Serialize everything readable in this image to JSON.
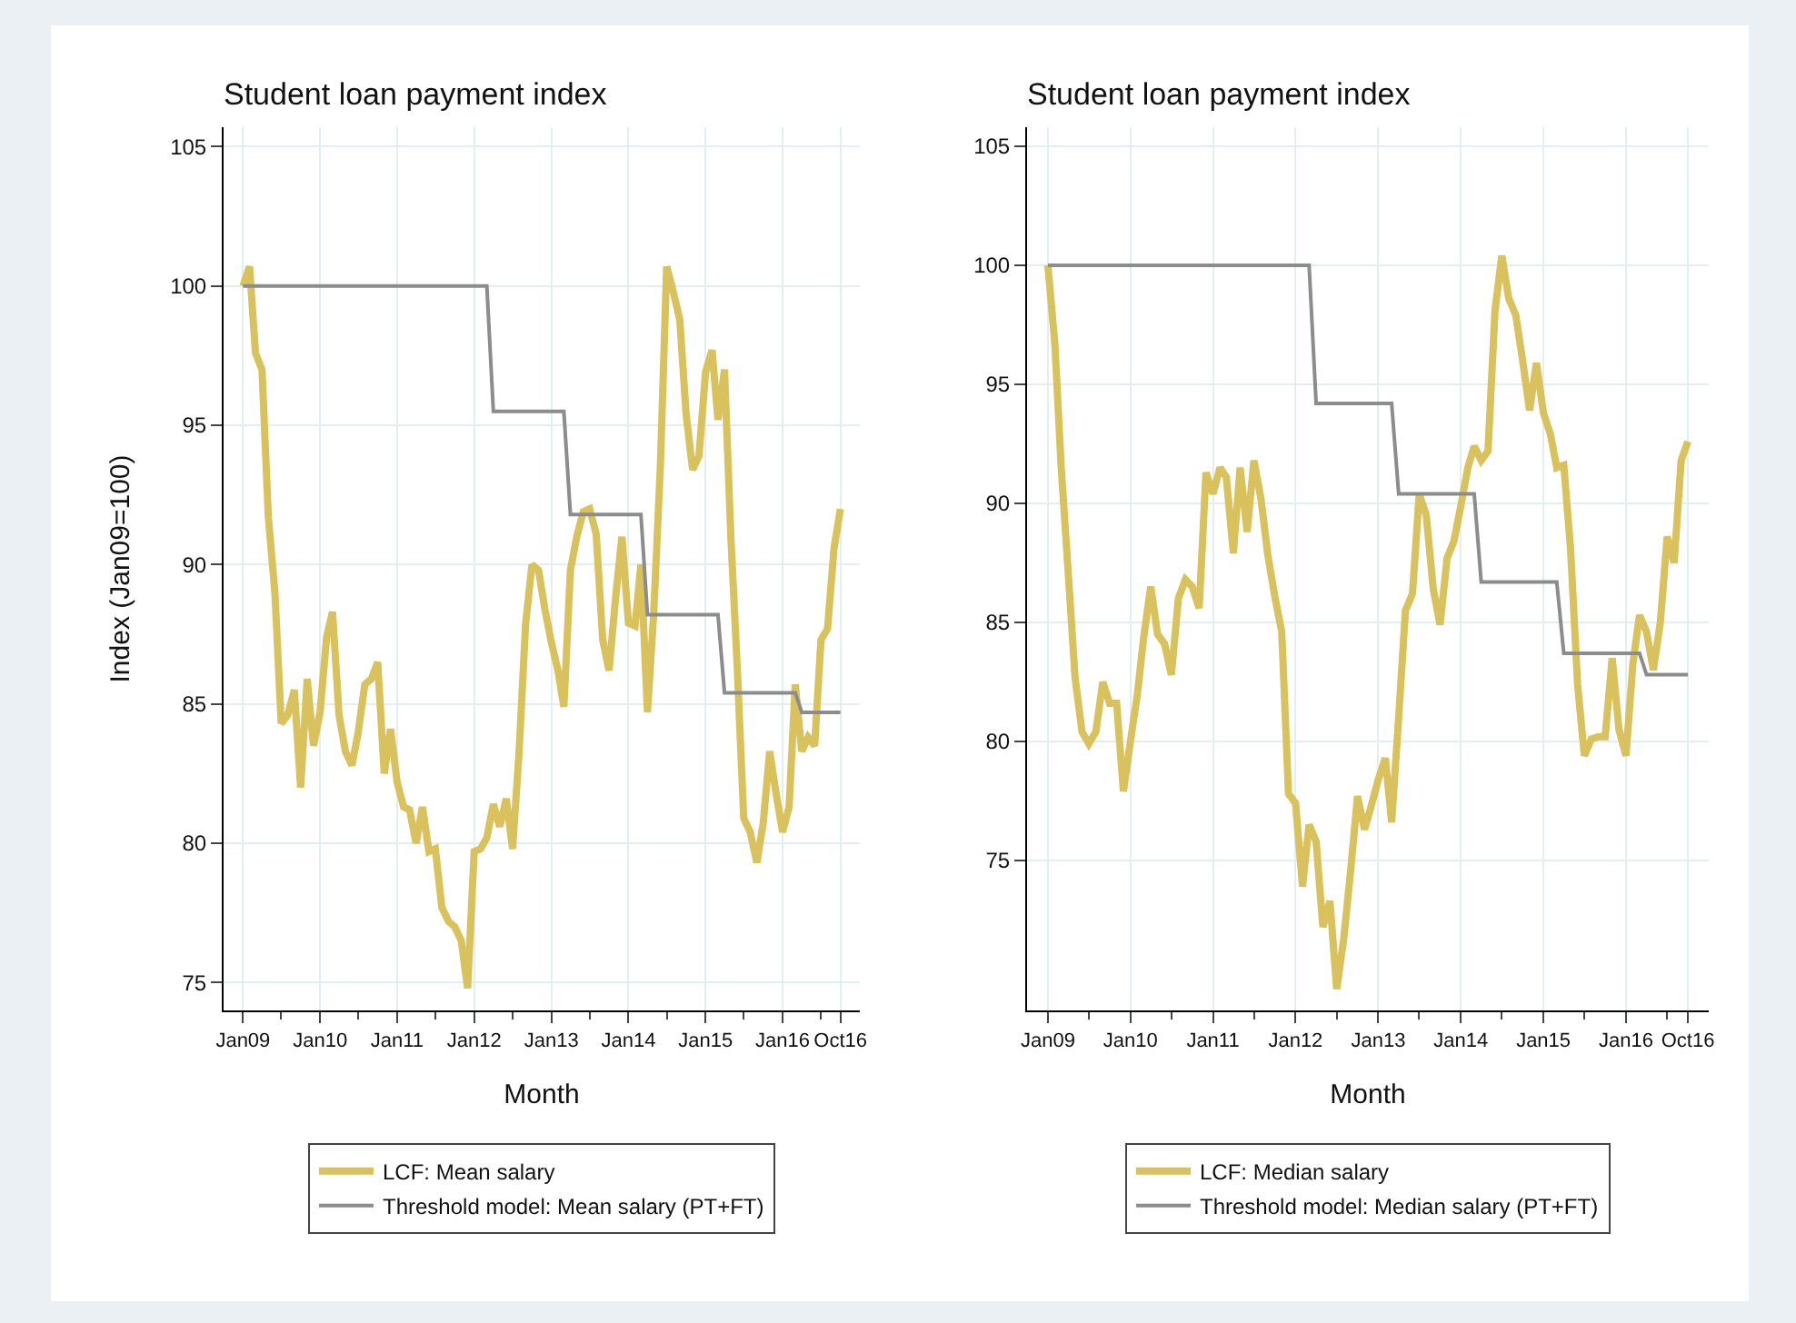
{
  "chart_data": [
    {
      "type": "line",
      "title": "Student loan payment index",
      "xlabel": "Month",
      "ylabel": "Index (Jan09=100)",
      "x": [
        "2009-01",
        "2009-02",
        "2009-03",
        "2009-04",
        "2009-05",
        "2009-06",
        "2009-07",
        "2009-08",
        "2009-09",
        "2009-10",
        "2009-11",
        "2009-12",
        "2010-01",
        "2010-02",
        "2010-03",
        "2010-04",
        "2010-05",
        "2010-06",
        "2010-07",
        "2010-08",
        "2010-09",
        "2010-10",
        "2010-11",
        "2010-12",
        "2011-01",
        "2011-02",
        "2011-03",
        "2011-04",
        "2011-05",
        "2011-06",
        "2011-07",
        "2011-08",
        "2011-09",
        "2011-10",
        "2011-11",
        "2011-12",
        "2012-01",
        "2012-02",
        "2012-03",
        "2012-04",
        "2012-05",
        "2012-06",
        "2012-07",
        "2012-08",
        "2012-09",
        "2012-10",
        "2012-11",
        "2012-12",
        "2013-01",
        "2013-02",
        "2013-03",
        "2013-04",
        "2013-05",
        "2013-06",
        "2013-07",
        "2013-08",
        "2013-09",
        "2013-10",
        "2013-11",
        "2013-12",
        "2014-01",
        "2014-02",
        "2014-03",
        "2014-04",
        "2014-05",
        "2014-06",
        "2014-07",
        "2014-08",
        "2014-09",
        "2014-10",
        "2014-11",
        "2014-12",
        "2015-01",
        "2015-02",
        "2015-03",
        "2015-04",
        "2015-05",
        "2015-06",
        "2015-07",
        "2015-08",
        "2015-09",
        "2015-10",
        "2015-11",
        "2015-12",
        "2016-01",
        "2016-02",
        "2016-03",
        "2016-04",
        "2016-05",
        "2016-06",
        "2016-07",
        "2016-08",
        "2016-09",
        "2016-10"
      ],
      "series": [
        {
          "name": "LCF: Mean salary",
          "color": "#d9c25e",
          "values": [
            100,
            100.7,
            97.6,
            97.0,
            91.7,
            89.0,
            84.3,
            84.6,
            85.5,
            82.0,
            85.9,
            83.5,
            84.7,
            87.4,
            88.3,
            84.6,
            83.3,
            82.8,
            84.0,
            85.7,
            85.9,
            86.5,
            82.5,
            84.1,
            82.2,
            81.3,
            81.2,
            80.0,
            81.3,
            79.7,
            79.8,
            77.7,
            77.2,
            77.0,
            76.5,
            74.8,
            79.7,
            79.8,
            80.2,
            81.4,
            80.6,
            81.6,
            79.8,
            83.3,
            87.9,
            90.0,
            89.8,
            88.4,
            87.2,
            86.2,
            84.9,
            89.8,
            91.0,
            91.9,
            92.0,
            91.1,
            87.3,
            86.2,
            88.8,
            91.0,
            87.9,
            87.8,
            90.0,
            84.7,
            88.3,
            93.5,
            100.7,
            99.8,
            98.8,
            95.4,
            93.4,
            93.9,
            96.9,
            97.7,
            95.2,
            97.0,
            91.0,
            86.2,
            80.9,
            80.4,
            79.3,
            80.7,
            83.3,
            81.8,
            80.4,
            81.3,
            85.7,
            83.3,
            83.8,
            83.5,
            87.3,
            87.7,
            90.6,
            92.0
          ]
        },
        {
          "name": "Threshold model: Mean salary (PT+FT)",
          "color": "#8c8c8c",
          "x": [
            "2009-01",
            "2012-03",
            "2012-04",
            "2013-03",
            "2013-04",
            "2014-03",
            "2014-04",
            "2015-03",
            "2015-04",
            "2016-03",
            "2016-04",
            "2016-10"
          ],
          "values": [
            100,
            100,
            95.5,
            95.5,
            91.8,
            91.8,
            88.2,
            88.2,
            85.4,
            85.4,
            84.7,
            84.7
          ]
        }
      ],
      "xlim": [
        "2008-10",
        "2017-01"
      ],
      "xticks": [
        {
          "value": "2009-01",
          "label": "Jan09"
        },
        {
          "value": "2009-07",
          "label": null
        },
        {
          "value": "2010-01",
          "label": "Jan10"
        },
        {
          "value": "2010-07",
          "label": null
        },
        {
          "value": "2011-01",
          "label": "Jan11"
        },
        {
          "value": "2011-07",
          "label": null
        },
        {
          "value": "2012-01",
          "label": "Jan12"
        },
        {
          "value": "2012-07",
          "label": null
        },
        {
          "value": "2013-01",
          "label": "Jan13"
        },
        {
          "value": "2013-07",
          "label": null
        },
        {
          "value": "2014-01",
          "label": "Jan14"
        },
        {
          "value": "2014-07",
          "label": null
        },
        {
          "value": "2015-01",
          "label": "Jan15"
        },
        {
          "value": "2015-07",
          "label": null
        },
        {
          "value": "2016-01",
          "label": "Jan16"
        },
        {
          "value": "2016-07",
          "label": null
        },
        {
          "value": "2016-10",
          "label": "Oct16"
        }
      ],
      "ylim": [
        74,
        105.7
      ],
      "yticks": [
        75,
        80,
        85,
        90,
        95,
        100,
        105
      ],
      "grid": true,
      "legend": "bottom",
      "marker": "none",
      "line_style": "solid"
    },
    {
      "type": "line",
      "title": "Student loan payment index",
      "xlabel": "Month",
      "x": [
        "2009-01",
        "2009-02",
        "2009-03",
        "2009-04",
        "2009-05",
        "2009-06",
        "2009-07",
        "2009-08",
        "2009-09",
        "2009-10",
        "2009-11",
        "2009-12",
        "2010-01",
        "2010-02",
        "2010-03",
        "2010-04",
        "2010-05",
        "2010-06",
        "2010-07",
        "2010-08",
        "2010-09",
        "2010-10",
        "2010-11",
        "2010-12",
        "2011-01",
        "2011-02",
        "2011-03",
        "2011-04",
        "2011-05",
        "2011-06",
        "2011-07",
        "2011-08",
        "2011-09",
        "2011-10",
        "2011-11",
        "2011-12",
        "2012-01",
        "2012-02",
        "2012-03",
        "2012-04",
        "2012-05",
        "2012-06",
        "2012-07",
        "2012-08",
        "2012-09",
        "2012-10",
        "2012-11",
        "2012-12",
        "2013-01",
        "2013-02",
        "2013-03",
        "2013-04",
        "2013-05",
        "2013-06",
        "2013-07",
        "2013-08",
        "2013-09",
        "2013-10",
        "2013-11",
        "2013-12",
        "2014-01",
        "2014-02",
        "2014-03",
        "2014-04",
        "2014-05",
        "2014-06",
        "2014-07",
        "2014-08",
        "2014-09",
        "2014-10",
        "2014-11",
        "2014-12",
        "2015-01",
        "2015-02",
        "2015-03",
        "2015-04",
        "2015-05",
        "2015-06",
        "2015-07",
        "2015-08",
        "2015-09",
        "2015-10",
        "2015-11",
        "2015-12",
        "2016-01",
        "2016-02",
        "2016-03",
        "2016-04",
        "2016-05",
        "2016-06",
        "2016-07",
        "2016-08",
        "2016-09",
        "2016-10"
      ],
      "series": [
        {
          "name": "LCF: Median salary",
          "color": "#d9c25e",
          "values": [
            100,
            96.7,
            91.5,
            87.1,
            82.7,
            80.4,
            79.9,
            80.4,
            82.5,
            81.6,
            81.6,
            77.9,
            80.0,
            82.0,
            84.4,
            86.5,
            84.5,
            84.1,
            82.8,
            86.0,
            86.8,
            86.5,
            85.6,
            91.3,
            90.4,
            91.5,
            91.1,
            87.9,
            91.5,
            88.8,
            91.8,
            90.2,
            87.8,
            86.1,
            84.6,
            77.8,
            77.4,
            73.9,
            76.5,
            75.8,
            72.2,
            73.3,
            69.6,
            71.7,
            74.6,
            77.7,
            76.3,
            77.3,
            78.4,
            79.3,
            76.6,
            81.0,
            85.5,
            86.2,
            90.4,
            89.5,
            86.4,
            84.9,
            87.7,
            88.4,
            89.9,
            91.5,
            92.4,
            91.8,
            92.2,
            98.1,
            100.4,
            98.6,
            97.9,
            96.0,
            93.9,
            95.9,
            93.8,
            92.9,
            91.5,
            91.6,
            88.1,
            82.4,
            79.4,
            80.1,
            80.2,
            80.2,
            83.5,
            80.5,
            79.4,
            83.3,
            85.3,
            84.6,
            83.0,
            85.0,
            88.6,
            87.5,
            91.8,
            92.6
          ]
        },
        {
          "name": "Threshold model: Median salary (PT+FT)",
          "color": "#8c8c8c",
          "x": [
            "2009-01",
            "2012-03",
            "2012-04",
            "2013-03",
            "2013-04",
            "2014-03",
            "2014-04",
            "2015-03",
            "2015-04",
            "2016-03",
            "2016-04",
            "2016-10"
          ],
          "values": [
            100,
            100,
            94.2,
            94.2,
            90.4,
            90.4,
            86.7,
            86.7,
            83.7,
            83.7,
            82.8,
            82.8
          ]
        }
      ],
      "xlim": [
        "2008-10",
        "2017-01"
      ],
      "xticks": [
        {
          "value": "2009-01",
          "label": "Jan09"
        },
        {
          "value": "2009-07",
          "label": null
        },
        {
          "value": "2010-01",
          "label": "Jan10"
        },
        {
          "value": "2010-07",
          "label": null
        },
        {
          "value": "2011-01",
          "label": "Jan11"
        },
        {
          "value": "2011-07",
          "label": null
        },
        {
          "value": "2012-01",
          "label": "Jan12"
        },
        {
          "value": "2012-07",
          "label": null
        },
        {
          "value": "2013-01",
          "label": "Jan13"
        },
        {
          "value": "2013-07",
          "label": null
        },
        {
          "value": "2014-01",
          "label": "Jan14"
        },
        {
          "value": "2014-07",
          "label": null
        },
        {
          "value": "2015-01",
          "label": "Jan15"
        },
        {
          "value": "2015-07",
          "label": null
        },
        {
          "value": "2016-01",
          "label": "Jan16"
        },
        {
          "value": "2016-07",
          "label": null
        },
        {
          "value": "2016-10",
          "label": "Oct16"
        }
      ],
      "ylim": [
        68.7,
        105.8
      ],
      "yticks": [
        75,
        80,
        85,
        90,
        95,
        100,
        105
      ],
      "grid": true,
      "legend": "bottom",
      "marker": "none",
      "line_style": "solid"
    }
  ]
}
